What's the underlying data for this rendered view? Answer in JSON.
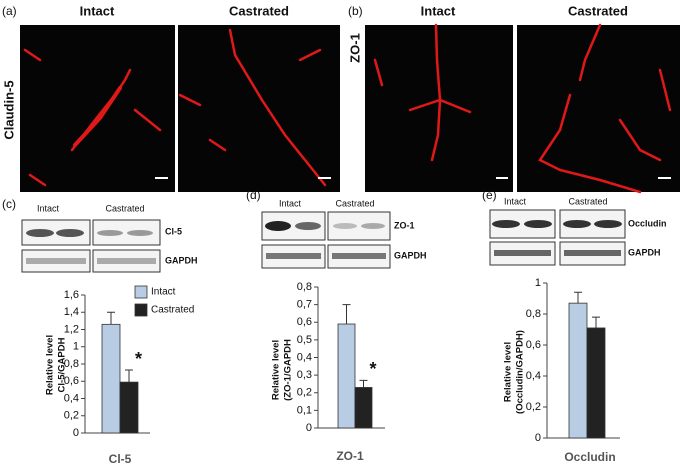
{
  "images": [
    {
      "label": "(a)",
      "stain": "Claudin-5",
      "columns": [
        "Intact",
        "Castrated"
      ]
    },
    {
      "label": "(b)",
      "stain": "ZO-1",
      "columns": [
        "Intact",
        "Castrated"
      ]
    }
  ],
  "blots": [
    {
      "label": "(c)",
      "columns": [
        "Intact",
        "Castrated"
      ],
      "rows": [
        "Cl-5",
        "GAPDH"
      ]
    },
    {
      "label": "(d)",
      "columns": [
        "Intact",
        "Castrated"
      ],
      "rows": [
        "ZO-1",
        "GAPDH"
      ]
    },
    {
      "label": "(e)",
      "columns": [
        "Intact",
        "Castrated"
      ],
      "rows": [
        "Occludin",
        "GAPDH"
      ]
    }
  ],
  "chart_data": [
    {
      "type": "bar",
      "ylabel": [
        "Relative level",
        "Cl-5/GAPDH"
      ],
      "categories": [
        "Cl-5"
      ],
      "series": [
        {
          "name": "Intact",
          "color": "#b8cce4",
          "values": [
            1.26
          ],
          "errors": [
            0.14
          ]
        },
        {
          "name": "Castrated",
          "color": "#222222",
          "values": [
            0.59
          ],
          "errors": [
            0.14
          ]
        }
      ],
      "ylim": [
        0,
        1.6
      ],
      "yticks": [
        0,
        {
          "value": 0.2,
          "label": "0,2"
        },
        {
          "value": 0.4,
          "label": "0,4"
        },
        {
          "value": 0.6,
          "label": "0,6"
        },
        {
          "value": 0.8,
          "label": "0,8"
        },
        1,
        {
          "value": 1.2,
          "label": "1,2"
        },
        {
          "value": 1.4,
          "label": "1,4"
        },
        {
          "value": 1.6,
          "label": "1,6"
        }
      ],
      "annotation": "*",
      "legend": true
    },
    {
      "type": "bar",
      "ylabel": [
        "Relative level",
        "(ZO-1/GAPDH"
      ],
      "categories": [
        "ZO-1"
      ],
      "series": [
        {
          "name": "Intact",
          "color": "#b8cce4",
          "values": [
            0.59
          ],
          "errors": [
            0.11
          ]
        },
        {
          "name": "Castrated",
          "color": "#222222",
          "values": [
            0.23
          ],
          "errors": [
            0.04
          ]
        }
      ],
      "ylim": [
        0,
        0.8
      ],
      "yticks": [
        0,
        {
          "value": 0.1,
          "label": "0,1"
        },
        {
          "value": 0.2,
          "label": "0,2"
        },
        {
          "value": 0.3,
          "label": "0,3"
        },
        {
          "value": 0.4,
          "label": "0,4"
        },
        {
          "value": 0.5,
          "label": "0,5"
        },
        {
          "value": 0.6,
          "label": "0,6"
        },
        {
          "value": 0.7,
          "label": "0,7"
        },
        {
          "value": 0.8,
          "label": "0,8"
        }
      ],
      "annotation": "*",
      "legend": false
    },
    {
      "type": "bar",
      "ylabel": [
        "Relative level",
        "(Occludin/GAPDH)"
      ],
      "categories": [
        "Occludin"
      ],
      "series": [
        {
          "name": "Intact",
          "color": "#b8cce4",
          "values": [
            0.87
          ],
          "errors": [
            0.07
          ]
        },
        {
          "name": "Castrated",
          "color": "#222222",
          "values": [
            0.71
          ],
          "errors": [
            0.07
          ]
        }
      ],
      "ylim": [
        0,
        1
      ],
      "yticks": [
        0,
        {
          "value": 0.2,
          "label": "0,2"
        },
        {
          "value": 0.4,
          "label": "0,4"
        },
        {
          "value": 0.6,
          "label": "0,6"
        },
        {
          "value": 0.8,
          "label": "0,8"
        },
        1
      ],
      "legend": false
    }
  ]
}
